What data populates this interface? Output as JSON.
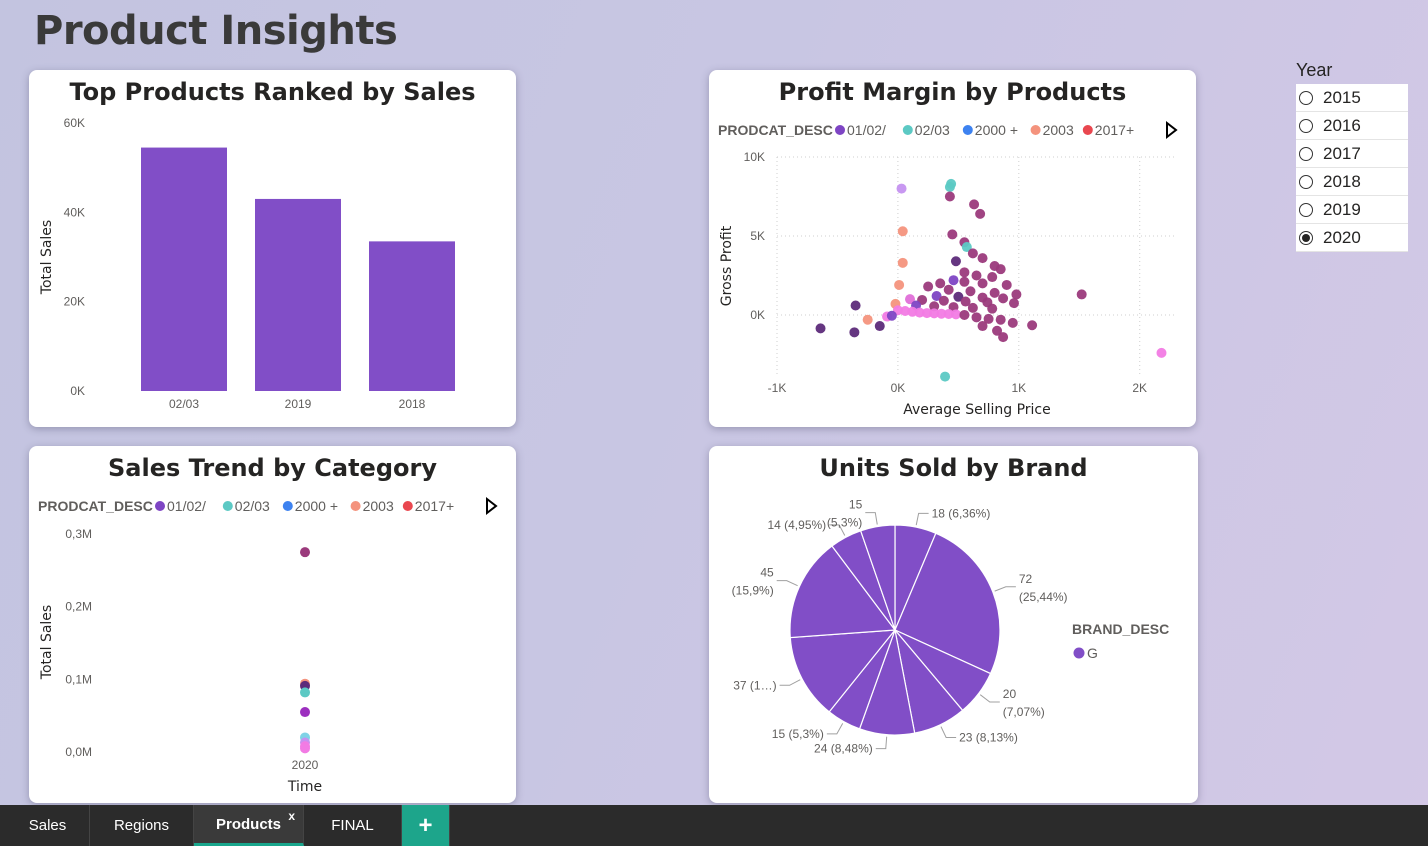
{
  "page": {
    "title": "Product Insights"
  },
  "colors": {
    "bar": "#814ec7",
    "pie": "#814ec7",
    "tab_accent": "#1da58b"
  },
  "year_slicer": {
    "title": "Year",
    "options": [
      "2015",
      "2016",
      "2017",
      "2018",
      "2019",
      "2020"
    ],
    "selected": "2020"
  },
  "tabs": {
    "items": [
      "Sales",
      "Regions",
      "Products",
      "FINAL"
    ],
    "active": "Products",
    "close_label": "x",
    "add_label": "+"
  },
  "legend": {
    "title": "PRODCAT_DESC",
    "entries": [
      {
        "label": "01/02/",
        "color": "#7e45c4"
      },
      {
        "label": "02/03",
        "color": "#5cc9c4"
      },
      {
        "label": "2000 +",
        "color": "#3d82f0"
      },
      {
        "label": "2003",
        "color": "#f4937d"
      },
      {
        "label": "2017+",
        "color": "#e9474f"
      }
    ]
  },
  "chart_data": [
    {
      "type": "bar",
      "title": "Top Products Ranked by Sales",
      "categories": [
        "02/03",
        "2019",
        "2018"
      ],
      "values": [
        54500,
        43000,
        33500
      ],
      "xlabel": "",
      "ylabel": "Total Sales",
      "ylim": [
        0,
        60000
      ],
      "y_ticks": [
        "0K",
        "20K",
        "40K",
        "60K"
      ],
      "grid": false
    },
    {
      "type": "scatter",
      "title": "Profit Margin by Products",
      "xlabel": "Average Selling Price",
      "ylabel": "Gross Profit",
      "xlim": [
        -1000,
        2300
      ],
      "ylim": [
        -3800,
        10000
      ],
      "x_ticks": [
        "-1K",
        "0K",
        "1K",
        "2K"
      ],
      "y_ticks": [
        "0K",
        "5K",
        "10K"
      ],
      "grid": true,
      "legend_placement": "top-left",
      "points": [
        {
          "x": 30,
          "y": 8000,
          "c": "#c592f0"
        },
        {
          "x": 440,
          "y": 8300,
          "c": "#5cc9c4"
        },
        {
          "x": 430,
          "y": 8100,
          "c": "#5cc9c4"
        },
        {
          "x": 430,
          "y": 7500,
          "c": "#9b3a7c"
        },
        {
          "x": 630,
          "y": 7000,
          "c": "#9b3a7c"
        },
        {
          "x": 680,
          "y": 6400,
          "c": "#9b3a7c"
        },
        {
          "x": 40,
          "y": 5300,
          "c": "#f4937d"
        },
        {
          "x": 450,
          "y": 5100,
          "c": "#9b3a7c"
        },
        {
          "x": 550,
          "y": 4600,
          "c": "#9b3a7c"
        },
        {
          "x": 570,
          "y": 4300,
          "c": "#5cc9c4"
        },
        {
          "x": 620,
          "y": 3900,
          "c": "#9b3a7c"
        },
        {
          "x": 700,
          "y": 3600,
          "c": "#9b3a7c"
        },
        {
          "x": 480,
          "y": 3400,
          "c": "#5d2b7a"
        },
        {
          "x": 40,
          "y": 3300,
          "c": "#f4937d"
        },
        {
          "x": 800,
          "y": 3100,
          "c": "#9b3a7c"
        },
        {
          "x": 850,
          "y": 2900,
          "c": "#9b3a7c"
        },
        {
          "x": 550,
          "y": 2700,
          "c": "#9b3a7c"
        },
        {
          "x": 650,
          "y": 2500,
          "c": "#9b3a7c"
        },
        {
          "x": 780,
          "y": 2400,
          "c": "#9b3a7c"
        },
        {
          "x": 460,
          "y": 2200,
          "c": "#7e45c4"
        },
        {
          "x": 550,
          "y": 2100,
          "c": "#9b3a7c"
        },
        {
          "x": 700,
          "y": 2000,
          "c": "#9b3a7c"
        },
        {
          "x": 900,
          "y": 1900,
          "c": "#9b3a7c"
        },
        {
          "x": 350,
          "y": 2000,
          "c": "#9b3a7c"
        },
        {
          "x": 10,
          "y": 1900,
          "c": "#f4937d"
        },
        {
          "x": 250,
          "y": 1800,
          "c": "#9b3a7c"
        },
        {
          "x": 420,
          "y": 1600,
          "c": "#9b3a7c"
        },
        {
          "x": 600,
          "y": 1500,
          "c": "#9b3a7c"
        },
        {
          "x": 800,
          "y": 1400,
          "c": "#9b3a7c"
        },
        {
          "x": 980,
          "y": 1300,
          "c": "#9b3a7c"
        },
        {
          "x": 1520,
          "y": 1300,
          "c": "#9b3a7c"
        },
        {
          "x": 320,
          "y": 1200,
          "c": "#7e45c4"
        },
        {
          "x": 500,
          "y": 1150,
          "c": "#5d2b7a"
        },
        {
          "x": 700,
          "y": 1100,
          "c": "#9b3a7c"
        },
        {
          "x": 870,
          "y": 1050,
          "c": "#9b3a7c"
        },
        {
          "x": 100,
          "y": 1000,
          "c": "#e06fd8"
        },
        {
          "x": 200,
          "y": 950,
          "c": "#9b3a7c"
        },
        {
          "x": 380,
          "y": 900,
          "c": "#9b3a7c"
        },
        {
          "x": 560,
          "y": 850,
          "c": "#9b3a7c"
        },
        {
          "x": 740,
          "y": 800,
          "c": "#9b3a7c"
        },
        {
          "x": 960,
          "y": 750,
          "c": "#9b3a7c"
        },
        {
          "x": -350,
          "y": 600,
          "c": "#5d2b7a"
        },
        {
          "x": -20,
          "y": 700,
          "c": "#f4937d"
        },
        {
          "x": 150,
          "y": 600,
          "c": "#7e45c4"
        },
        {
          "x": 300,
          "y": 550,
          "c": "#9b3a7c"
        },
        {
          "x": 460,
          "y": 500,
          "c": "#9b3a7c"
        },
        {
          "x": 620,
          "y": 450,
          "c": "#9b3a7c"
        },
        {
          "x": 780,
          "y": 400,
          "c": "#9b3a7c"
        },
        {
          "x": 0,
          "y": 300,
          "c": "#f27be4"
        },
        {
          "x": 60,
          "y": 250,
          "c": "#f27be4"
        },
        {
          "x": 120,
          "y": 200,
          "c": "#f27be4"
        },
        {
          "x": 180,
          "y": 150,
          "c": "#f27be4"
        },
        {
          "x": 240,
          "y": 120,
          "c": "#f27be4"
        },
        {
          "x": 300,
          "y": 100,
          "c": "#f27be4"
        },
        {
          "x": 360,
          "y": 80,
          "c": "#f27be4"
        },
        {
          "x": 420,
          "y": 60,
          "c": "#f27be4"
        },
        {
          "x": 480,
          "y": 40,
          "c": "#f27be4"
        },
        {
          "x": -90,
          "y": -100,
          "c": "#f27be4"
        },
        {
          "x": -50,
          "y": -50,
          "c": "#7e45c4"
        },
        {
          "x": 550,
          "y": 0,
          "c": "#9b3a7c"
        },
        {
          "x": 650,
          "y": -150,
          "c": "#9b3a7c"
        },
        {
          "x": 750,
          "y": -250,
          "c": "#9b3a7c"
        },
        {
          "x": 850,
          "y": -300,
          "c": "#9b3a7c"
        },
        {
          "x": 950,
          "y": -500,
          "c": "#9b3a7c"
        },
        {
          "x": 1110,
          "y": -650,
          "c": "#9b3a7c"
        },
        {
          "x": 700,
          "y": -700,
          "c": "#9b3a7c"
        },
        {
          "x": 820,
          "y": -1000,
          "c": "#9b3a7c"
        },
        {
          "x": 870,
          "y": -1400,
          "c": "#9b3a7c"
        },
        {
          "x": -250,
          "y": -300,
          "c": "#f4937d"
        },
        {
          "x": -640,
          "y": -850,
          "c": "#5d2b7a"
        },
        {
          "x": -360,
          "y": -1100,
          "c": "#5d2b7a"
        },
        {
          "x": -150,
          "y": -700,
          "c": "#5d2b7a"
        },
        {
          "x": 2180,
          "y": -2400,
          "c": "#f27be4"
        },
        {
          "x": 390,
          "y": -3900,
          "c": "#5cc9c4"
        }
      ]
    },
    {
      "type": "scatter",
      "title": "Sales Trend by Category",
      "xlabel": "Time",
      "ylabel": "Total Sales",
      "x_categories": [
        "2020"
      ],
      "ylim": [
        0,
        300000
      ],
      "y_ticks": [
        "0,0M",
        "0,1M",
        "0,2M",
        "0,3M"
      ],
      "legend_placement": "top-left",
      "points": [
        {
          "x": "2020",
          "y": 275000,
          "c": "#9b3a7c"
        },
        {
          "x": "2020",
          "y": 94000,
          "c": "#f4937d"
        },
        {
          "x": "2020",
          "y": 91000,
          "c": "#5d2b7a"
        },
        {
          "x": "2020",
          "y": 82000,
          "c": "#5cc9c4"
        },
        {
          "x": "2020",
          "y": 55000,
          "c": "#9c2fbf"
        },
        {
          "x": "2020",
          "y": 20000,
          "c": "#7fd3e6"
        },
        {
          "x": "2020",
          "y": 13000,
          "c": "#c592f0"
        },
        {
          "x": "2020",
          "y": 8000,
          "c": "#f27be4"
        },
        {
          "x": "2020",
          "y": 5000,
          "c": "#f27be4"
        }
      ]
    },
    {
      "type": "pie",
      "title": "Units Sold by Brand",
      "legend_title": "BRAND_DESC",
      "legend_entries": [
        {
          "label": "G",
          "color": "#814ec7"
        }
      ],
      "legend_placement": "right",
      "slices": [
        {
          "label": "18 (6,36%)",
          "value": 18
        },
        {
          "label": "72 (25,44%)",
          "value": 72,
          "lines": [
            "72",
            "(25,44%)"
          ]
        },
        {
          "label": "20 (7,07%)",
          "value": 20,
          "lines": [
            "20",
            "(7,07%)"
          ]
        },
        {
          "label": "23 (8,13%)",
          "value": 23
        },
        {
          "label": "24 (8,48%)",
          "value": 24
        },
        {
          "label": "15 (5,3%)",
          "value": 15
        },
        {
          "label": "37 (1…)",
          "value": 37
        },
        {
          "label": "45 (15,9%)",
          "value": 45,
          "lines": [
            "45",
            "(15,9%)"
          ]
        },
        {
          "label": "14 (4,95%)",
          "value": 14
        },
        {
          "label": "15 (5,3%)",
          "value": 15,
          "lines": [
            "15",
            "(5,3%)"
          ]
        }
      ]
    }
  ]
}
